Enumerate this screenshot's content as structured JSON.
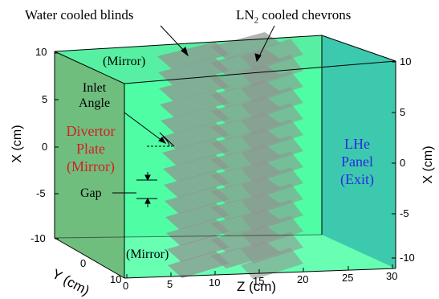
{
  "annotations": {
    "water_blinds": "Water cooled blinds",
    "ln2_prefix": "LN",
    "ln2_sub": "2",
    "ln2_suffix": " cooled chevrons",
    "mirror_top": "(Mirror)",
    "mirror_bottom": "(Mirror)",
    "inlet_line1": "Inlet",
    "inlet_line2": "Angle",
    "gap": "Gap",
    "divertor_line1": "Divertor",
    "divertor_line2": "Plate",
    "divertor_line3": "(Mirror)",
    "lhe_line1": "LHe",
    "lhe_line2": "Panel",
    "lhe_line3": "(Exit)"
  },
  "axes": {
    "x_left_label": "X (cm)",
    "x_right_label": "X (cm)",
    "y_label": "Y (cm)",
    "z_label": "Z (cm)",
    "x_left_ticks": [
      "10",
      "5",
      "0",
      "-5",
      "-10"
    ],
    "x_right_ticks": [
      "10",
      "5",
      "0",
      "-5",
      "-10"
    ],
    "y_ticks": [
      "0",
      "10"
    ],
    "z_ticks": [
      "0",
      "5",
      "10",
      "15",
      "20",
      "25",
      "30"
    ]
  },
  "colors": {
    "box_fill": "#4dffa6",
    "divertor_face": "#6fbe7e",
    "lhe_face": "#3dc9ae",
    "divertor_text": "#d42020",
    "lhe_text": "#2a2ae0",
    "chevron": "#8f9690"
  }
}
